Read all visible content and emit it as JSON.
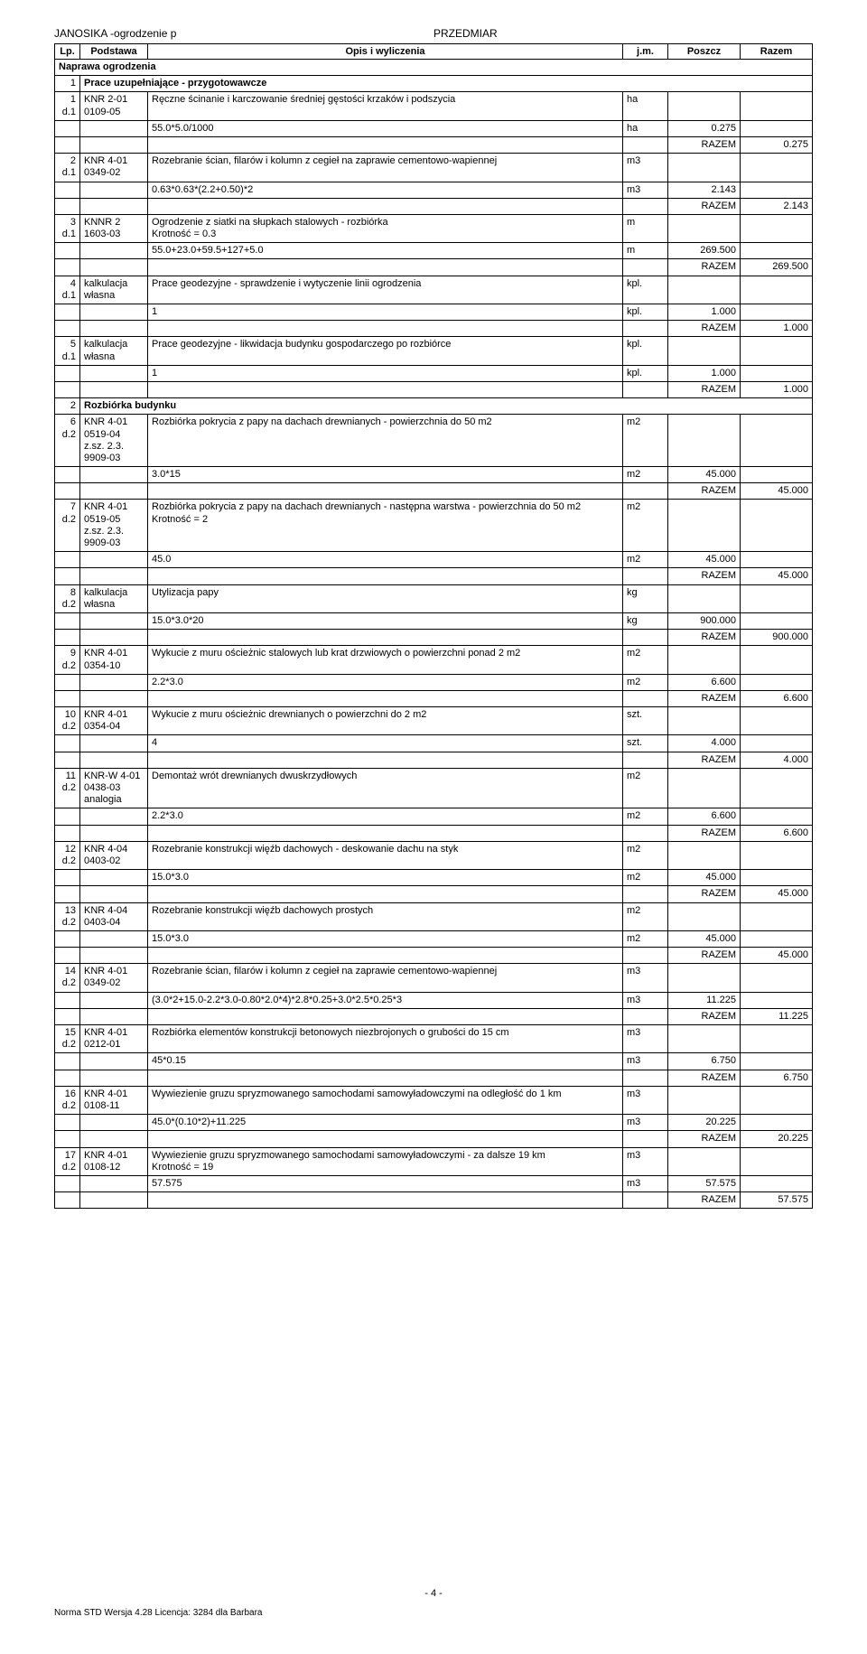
{
  "header": {
    "left": "JANOSIKA -ogrodzenie p",
    "center": "PRZEDMIAR"
  },
  "columns": [
    "Lp.",
    "Podstawa",
    "Opis i wyliczenia",
    "j.m.",
    "Poszcz",
    "Razem"
  ],
  "footer": {
    "page": "- 4 -",
    "note": "Norma STD Wersja 4.28 Licencja: 3284 dla Barbara"
  },
  "rows": [
    {
      "type": "section",
      "span": 6,
      "text": "Naprawa  ogrodzenia"
    },
    {
      "type": "section",
      "lp": "1",
      "text": "Prace  uzupełniające  -  przygotowawcze",
      "span": 5
    },
    {
      "lp": "1\nd.1",
      "basis": "KNR 2-01\n0109-05",
      "desc": "Ręczne ścinanie i karczowanie średniej gęstości krzaków i podszycia",
      "unit": "ha"
    },
    {
      "desc": "55.0*5.0/1000",
      "unit": "ha",
      "poszcz": "0.275"
    },
    {
      "type": "razem",
      "razem_label": "RAZEM",
      "razem": "0.275"
    },
    {
      "lp": "2\nd.1",
      "basis": "KNR 4-01\n0349-02",
      "desc": "Rozebranie ścian, filarów i kolumn z cegieł na zaprawie cementowo-wapiennej",
      "unit": "m3"
    },
    {
      "desc": "0.63*0.63*(2.2+0.50)*2",
      "unit": "m3",
      "poszcz": "2.143"
    },
    {
      "type": "razem",
      "razem_label": "RAZEM",
      "razem": "2.143"
    },
    {
      "lp": "3\nd.1",
      "basis": "KNNR 2\n1603-03",
      "desc": "Ogrodzenie z siatki  na słupkach stalowych   -  rozbiórka\nKrotność = 0.3",
      "unit": "m"
    },
    {
      "desc": "55.0+23.0+59.5+127+5.0",
      "unit": "m",
      "poszcz": "269.500"
    },
    {
      "type": "razem",
      "razem_label": "RAZEM",
      "razem": "269.500"
    },
    {
      "lp": "4\nd.1",
      "basis": "kalkulacja\nwłasna",
      "desc": "Prace  geodezyjne  -  sprawdzenie  i  wytyczenie  linii  ogrodzenia",
      "unit": "kpl."
    },
    {
      "desc": "1",
      "unit": "kpl.",
      "poszcz": "1.000"
    },
    {
      "type": "razem",
      "razem_label": "RAZEM",
      "razem": "1.000"
    },
    {
      "lp": "5\nd.1",
      "basis": "kalkulacja\nwłasna",
      "desc": "Prace  geodezyjne  -  likwidacja  budynku  gospodarczego  po  rozbiórce",
      "unit": "kpl."
    },
    {
      "desc": "1",
      "unit": "kpl.",
      "poszcz": "1.000"
    },
    {
      "type": "razem",
      "razem_label": "RAZEM",
      "razem": "1.000"
    },
    {
      "type": "section",
      "lp": "2",
      "text": "Rozbiórka  budynku",
      "span": 5
    },
    {
      "lp": "6\nd.2",
      "basis": "KNR 4-01\n0519-04\nz.sz. 2.3.\n9909-03",
      "desc": "Rozbiórka pokrycia z papy na dachach drewnianych - powierzchnia do 50 m2",
      "unit": "m2"
    },
    {
      "desc": "3.0*15",
      "unit": "m2",
      "poszcz": "45.000"
    },
    {
      "type": "razem",
      "razem_label": "RAZEM",
      "razem": "45.000"
    },
    {
      "lp": "7\nd.2",
      "basis": "KNR 4-01\n0519-05\nz.sz. 2.3.\n9909-03",
      "desc": "Rozbiórka pokrycia z papy na dachach drewnianych - następna warstwa - powierzchnia do 50 m2\nKrotność = 2",
      "unit": "m2"
    },
    {
      "desc": "45.0",
      "unit": "m2",
      "poszcz": "45.000"
    },
    {
      "type": "razem",
      "razem_label": "RAZEM",
      "razem": "45.000"
    },
    {
      "lp": "8\nd.2",
      "basis": "kalkulacja\nwłasna",
      "desc": "Utylizacja  papy",
      "unit": "kg"
    },
    {
      "desc": "15.0*3.0*20",
      "unit": "kg",
      "poszcz": "900.000"
    },
    {
      "type": "razem",
      "razem_label": "RAZEM",
      "razem": "900.000"
    },
    {
      "lp": "9\nd.2",
      "basis": "KNR 4-01\n0354-10",
      "desc": "Wykucie z muru ościeżnic stalowych lub krat drzwiowych o powierzchni ponad 2 m2",
      "unit": "m2"
    },
    {
      "desc": "2.2*3.0",
      "unit": "m2",
      "poszcz": "6.600"
    },
    {
      "type": "razem",
      "razem_label": "RAZEM",
      "razem": "6.600"
    },
    {
      "lp": "10\nd.2",
      "basis": "KNR 4-01\n0354-04",
      "desc": "Wykucie z muru ościeżnic drewnianych o powierzchni do 2 m2",
      "unit": "szt."
    },
    {
      "desc": "4",
      "unit": "szt.",
      "poszcz": "4.000"
    },
    {
      "type": "razem",
      "razem_label": "RAZEM",
      "razem": "4.000"
    },
    {
      "lp": "11\nd.2",
      "basis": "KNR-W 4-01\n0438-03\nanalogia",
      "desc": "Demontaż  wrót  drewnianych  dwuskrzydłowych",
      "unit": "m2"
    },
    {
      "desc": "2.2*3.0",
      "unit": "m2",
      "poszcz": "6.600"
    },
    {
      "type": "razem",
      "razem_label": "RAZEM",
      "razem": "6.600"
    },
    {
      "lp": "12\nd.2",
      "basis": "KNR 4-04\n0403-02",
      "desc": "Rozebranie konstrukcji więźb dachowych - deskowanie dachu na styk",
      "unit": "m2"
    },
    {
      "desc": "15.0*3.0",
      "unit": "m2",
      "poszcz": "45.000"
    },
    {
      "type": "razem",
      "razem_label": "RAZEM",
      "razem": "45.000"
    },
    {
      "lp": "13\nd.2",
      "basis": "KNR 4-04\n0403-04",
      "desc": "Rozebranie konstrukcji więźb dachowych prostych",
      "unit": "m2"
    },
    {
      "desc": "15.0*3.0",
      "unit": "m2",
      "poszcz": "45.000"
    },
    {
      "type": "razem",
      "razem_label": "RAZEM",
      "razem": "45.000"
    },
    {
      "lp": "14\nd.2",
      "basis": "KNR 4-01\n0349-02",
      "desc": "Rozebranie ścian, filarów i kolumn z cegieł na zaprawie cementowo-wapiennej",
      "unit": "m3"
    },
    {
      "desc": "(3.0*2+15.0-2.2*3.0-0.80*2.0*4)*2.8*0.25+3.0*2.5*0.25*3",
      "unit": "m3",
      "poszcz": "11.225"
    },
    {
      "type": "razem",
      "razem_label": "RAZEM",
      "razem": "11.225"
    },
    {
      "lp": "15\nd.2",
      "basis": "KNR 4-01\n0212-01",
      "desc": "Rozbiórka elementów konstrukcji betonowych niezbrojonych o grubości do 15 cm",
      "unit": "m3"
    },
    {
      "desc": "45*0.15",
      "unit": "m3",
      "poszcz": "6.750"
    },
    {
      "type": "razem",
      "razem_label": "RAZEM",
      "razem": "6.750"
    },
    {
      "lp": "16\nd.2",
      "basis": "KNR 4-01\n0108-11",
      "desc": "Wywiezienie gruzu spryzmowanego samochodami samowyładowczymi na odległość do 1 km",
      "unit": "m3"
    },
    {
      "desc": "45.0*(0.10*2)+11.225",
      "unit": "m3",
      "poszcz": "20.225"
    },
    {
      "type": "razem",
      "razem_label": "RAZEM",
      "razem": "20.225"
    },
    {
      "lp": "17\nd.2",
      "basis": "KNR 4-01\n0108-12",
      "desc": "Wywiezienie gruzu spryzmowanego samochodami samowyładowczymi - za dalsze 19 km\nKrotność = 19",
      "unit": "m3"
    },
    {
      "desc": "57.575",
      "unit": "m3",
      "poszcz": "57.575"
    },
    {
      "type": "razem",
      "razem_label": "RAZEM",
      "razem": "57.575"
    }
  ]
}
